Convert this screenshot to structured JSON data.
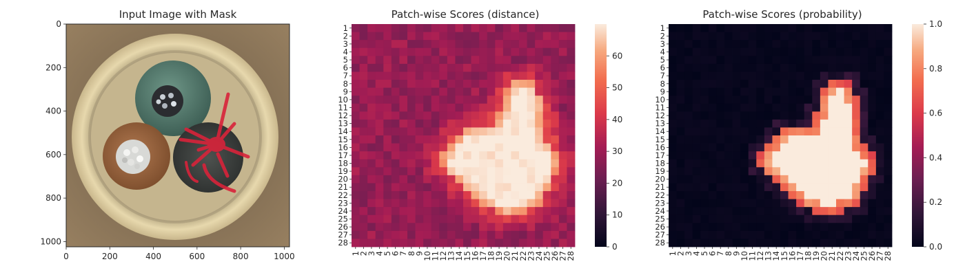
{
  "panels": {
    "image": {
      "title": "Input Image with Mask"
    },
    "distance": {
      "title": "Patch-wise Scores (distance)"
    },
    "probability": {
      "title": "Patch-wise Scores (probability)"
    }
  },
  "chart_data": [
    {
      "type": "image",
      "title": "Input Image with Mask",
      "xlim": [
        0,
        1024
      ],
      "ylim": [
        1024,
        0
      ],
      "x_ticks": [
        "0",
        "200",
        "400",
        "600",
        "800",
        "1000"
      ],
      "y_ticks": [
        "0",
        "200",
        "400",
        "600",
        "800",
        "1000"
      ],
      "content": "top-down view of a three-core cable cross-section (green core top, brown core left, dark grey core right) inside a cream sheath, with a red defect mask over the centre-right",
      "colors": {
        "mask": "#d8233a",
        "background": "#8c7556",
        "sheath": "#e2d3a8"
      }
    },
    {
      "type": "heatmap",
      "title": "Patch-wise Scores (distance)",
      "rows": 28,
      "cols": 28,
      "row_labels": [
        "1",
        "2",
        "3",
        "4",
        "5",
        "6",
        "7",
        "8",
        "9",
        "10",
        "11",
        "12",
        "13",
        "14",
        "15",
        "16",
        "17",
        "18",
        "19",
        "20",
        "21",
        "22",
        "23",
        "24",
        "25",
        "26",
        "27",
        "28"
      ],
      "col_labels": [
        "1",
        "2",
        "3",
        "4",
        "5",
        "6",
        "7",
        "8",
        "9",
        "10",
        "11",
        "12",
        "13",
        "14",
        "15",
        "16",
        "17",
        "18",
        "19",
        "20",
        "21",
        "22",
        "23",
        "24",
        "25",
        "26",
        "27",
        "28"
      ],
      "colormap": "rocket",
      "colorbar": {
        "min": 0,
        "max": 70,
        "ticks": [
          "0",
          "10",
          "20",
          "30",
          "40",
          "50",
          "60"
        ]
      },
      "baseline": 29,
      "peak": 70,
      "anomaly_region": [
        {
          "row": 8,
          "cols": [
            21,
            23
          ]
        },
        {
          "row": 9,
          "cols": [
            20,
            23
          ]
        },
        {
          "row": 10,
          "cols": [
            20,
            24
          ]
        },
        {
          "row": 11,
          "cols": [
            20,
            24
          ]
        },
        {
          "row": 12,
          "cols": [
            19,
            24
          ]
        },
        {
          "row": 13,
          "cols": [
            19,
            24
          ]
        },
        {
          "row": 14,
          "cols": [
            15,
            24
          ]
        },
        {
          "row": 15,
          "cols": [
            14,
            24
          ]
        },
        {
          "row": 16,
          "cols": [
            13,
            25
          ]
        },
        {
          "row": 17,
          "cols": [
            12,
            26
          ]
        },
        {
          "row": 18,
          "cols": [
            12,
            26
          ]
        },
        {
          "row": 19,
          "cols": [
            13,
            26
          ]
        },
        {
          "row": 20,
          "cols": [
            14,
            25
          ]
        },
        {
          "row": 21,
          "cols": [
            15,
            25
          ]
        },
        {
          "row": 22,
          "cols": [
            16,
            24
          ]
        },
        {
          "row": 23,
          "cols": [
            17,
            24
          ]
        },
        {
          "row": 24,
          "cols": [
            19,
            22
          ]
        }
      ]
    },
    {
      "type": "heatmap",
      "title": "Patch-wise Scores (probability)",
      "rows": 28,
      "cols": 28,
      "row_labels": [
        "1",
        "2",
        "3",
        "4",
        "5",
        "6",
        "7",
        "8",
        "9",
        "10",
        "11",
        "12",
        "13",
        "14",
        "15",
        "16",
        "17",
        "18",
        "19",
        "20",
        "21",
        "22",
        "23",
        "24",
        "25",
        "26",
        "27",
        "28"
      ],
      "col_labels": [
        "1",
        "2",
        "3",
        "4",
        "5",
        "6",
        "7",
        "8",
        "9",
        "10",
        "11",
        "12",
        "13",
        "14",
        "15",
        "16",
        "17",
        "18",
        "19",
        "20",
        "21",
        "22",
        "23",
        "24",
        "25",
        "26",
        "27",
        "28"
      ],
      "colormap": "rocket",
      "colorbar": {
        "min": 0.0,
        "max": 1.0,
        "ticks": [
          "0.0",
          "0.2",
          "0.4",
          "0.6",
          "0.8",
          "1.0"
        ]
      },
      "baseline": 0.0,
      "anomaly_region": [
        {
          "row": 8,
          "cols": [
            21,
            23
          ]
        },
        {
          "row": 9,
          "cols": [
            20,
            23
          ]
        },
        {
          "row": 10,
          "cols": [
            20,
            24
          ]
        },
        {
          "row": 11,
          "cols": [
            20,
            24
          ]
        },
        {
          "row": 12,
          "cols": [
            19,
            24
          ]
        },
        {
          "row": 13,
          "cols": [
            19,
            24
          ]
        },
        {
          "row": 14,
          "cols": [
            15,
            24
          ]
        },
        {
          "row": 15,
          "cols": [
            14,
            24
          ]
        },
        {
          "row": 16,
          "cols": [
            13,
            25
          ]
        },
        {
          "row": 17,
          "cols": [
            12,
            26
          ]
        },
        {
          "row": 18,
          "cols": [
            12,
            26
          ]
        },
        {
          "row": 19,
          "cols": [
            13,
            26
          ]
        },
        {
          "row": 20,
          "cols": [
            14,
            25
          ]
        },
        {
          "row": 21,
          "cols": [
            15,
            25
          ]
        },
        {
          "row": 22,
          "cols": [
            16,
            24
          ]
        },
        {
          "row": 23,
          "cols": [
            17,
            24
          ]
        },
        {
          "row": 24,
          "cols": [
            19,
            22
          ]
        }
      ]
    }
  ]
}
